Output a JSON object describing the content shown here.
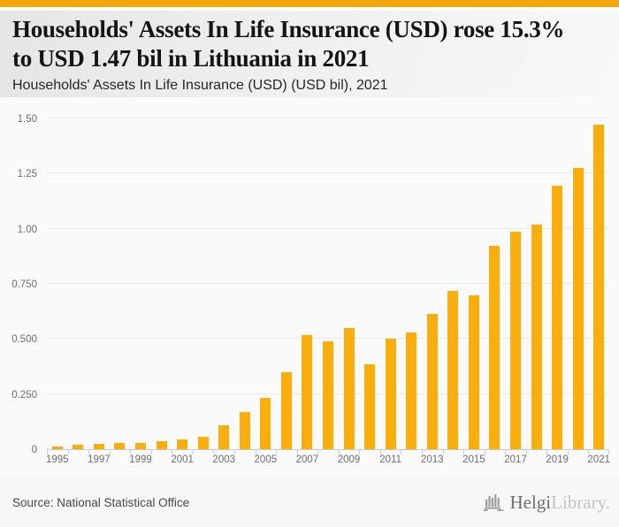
{
  "header": {
    "title_lines": [
      "Households' Assets In Life Insurance (USD) rose 15.3%",
      "to USD 1.47 bil in Lithuania in 2021"
    ],
    "subtitle": "Households' Assets In Life Insurance (USD) (USD bil), 2021"
  },
  "chart_data": {
    "type": "bar",
    "title": "Households' Assets In Life Insurance (USD) rose 15.3% to USD 1.47 bil in Lithuania in 2021",
    "subtitle": "Households' Assets In Life Insurance (USD) (USD bil), 2021",
    "unit": "USD bil",
    "categories": [
      1995,
      1996,
      1997,
      1998,
      1999,
      2000,
      2001,
      2002,
      2003,
      2004,
      2005,
      2006,
      2007,
      2008,
      2009,
      2010,
      2011,
      2012,
      2013,
      2014,
      2015,
      2016,
      2017,
      2018,
      2019,
      2020,
      2021
    ],
    "values": [
      0.013,
      0.019,
      0.023,
      0.027,
      0.03,
      0.036,
      0.044,
      0.058,
      0.108,
      0.168,
      0.232,
      0.347,
      0.518,
      0.488,
      0.548,
      0.385,
      0.503,
      0.528,
      0.615,
      0.718,
      0.697,
      0.921,
      0.985,
      1.017,
      1.195,
      1.276,
      1.47
    ],
    "ylim": [
      0,
      1.54
    ],
    "yticks": [
      0,
      0.25,
      0.5,
      0.75,
      1.0,
      1.25,
      1.5
    ],
    "ytick_labels": [
      "0",
      "0.250",
      "0.500",
      "0.750",
      "1.00",
      "1.25",
      "1.50"
    ],
    "xtick_labels": [
      1995,
      1997,
      1999,
      2001,
      2003,
      2005,
      2007,
      2009,
      2011,
      2013,
      2015,
      2017,
      2019,
      2021
    ],
    "grid": true,
    "legend": false,
    "bar_color": "#F9AE0C"
  },
  "footer": {
    "source": "Source: National Statistical Office",
    "logo": {
      "icon": "castle-bars-icon",
      "name_primary": "Helgi",
      "name_secondary": "Library."
    }
  },
  "colors": {
    "accent_banner": "#F2A607",
    "bar": "#F9AE0C",
    "grid": "#e9e9e9",
    "axis": "#c9c9c9",
    "tick": "#c3cce8"
  }
}
